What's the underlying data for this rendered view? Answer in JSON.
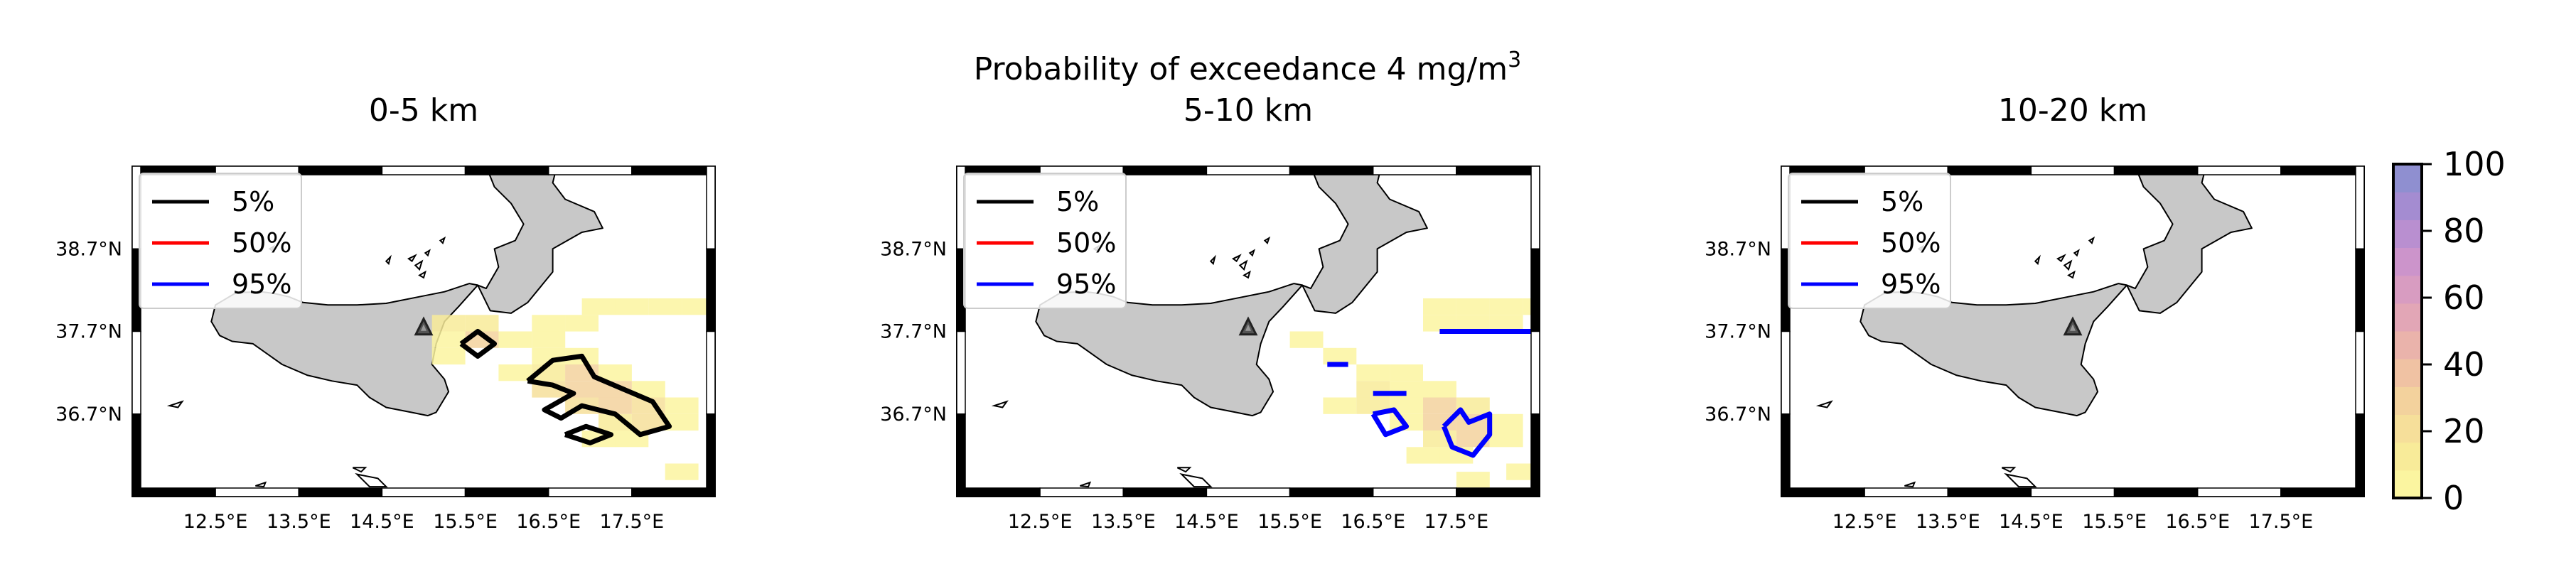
{
  "figure": {
    "suptitle": "Probability of exceedance 4 mg/m",
    "suptitle_superscript": "3"
  },
  "chart_data": [
    {
      "type": "heatmap",
      "title": "0-5 km",
      "x_ticks": [
        "12.5°E",
        "13.5°E",
        "14.5°E",
        "15.5°E",
        "16.5°E",
        "17.5°E"
      ],
      "x_tick_values": [
        12.5,
        13.5,
        14.5,
        15.5,
        16.5,
        17.5
      ],
      "y_ticks": [
        "38.7°N",
        "37.7°N",
        "36.7°N"
      ],
      "y_tick_values": [
        38.7,
        37.7,
        36.7
      ],
      "xlim": [
        11.5,
        18.5
      ],
      "ylim": [
        35.7,
        39.7
      ],
      "legend": {
        "position": "top-left",
        "entries": [
          {
            "label": "5%",
            "color": "#000000"
          },
          {
            "label": "50%",
            "color": "#ff0000"
          },
          {
            "label": "95%",
            "color": "#0000ff"
          }
        ]
      },
      "marker": {
        "lon": 15.0,
        "lat": 37.75
      },
      "cells": [
        [
          17.1,
          38.0,
          6
        ],
        [
          17.5,
          38.0,
          6
        ],
        [
          17.9,
          38.0,
          6
        ],
        [
          18.3,
          38.0,
          6
        ],
        [
          15.3,
          37.8,
          10
        ],
        [
          15.7,
          37.8,
          15
        ],
        [
          16.5,
          37.8,
          8
        ],
        [
          16.9,
          37.8,
          8
        ],
        [
          15.3,
          37.6,
          6
        ],
        [
          15.7,
          37.6,
          25
        ],
        [
          16.1,
          37.6,
          8
        ],
        [
          16.5,
          37.6,
          6
        ],
        [
          15.3,
          37.4,
          6
        ],
        [
          16.5,
          37.4,
          8
        ],
        [
          16.9,
          37.4,
          6
        ],
        [
          16.1,
          37.2,
          8
        ],
        [
          16.5,
          37.2,
          15
        ],
        [
          16.9,
          37.2,
          25
        ],
        [
          17.3,
          37.2,
          8
        ],
        [
          16.5,
          37.0,
          20
        ],
        [
          16.9,
          37.0,
          30
        ],
        [
          17.3,
          37.0,
          25
        ],
        [
          17.7,
          37.0,
          8
        ],
        [
          16.9,
          36.8,
          20
        ],
        [
          17.3,
          36.8,
          30
        ],
        [
          17.7,
          36.8,
          20
        ],
        [
          18.1,
          36.8,
          6
        ],
        [
          17.3,
          36.6,
          15
        ],
        [
          17.7,
          36.6,
          20
        ],
        [
          18.1,
          36.6,
          6
        ],
        [
          17.1,
          36.4,
          8
        ],
        [
          17.5,
          36.4,
          8
        ],
        [
          18.1,
          36.0,
          8
        ]
      ],
      "contours": [
        {
          "level": "5%",
          "color": "#000000",
          "points": [
            [
              15.45,
              37.55
            ],
            [
              15.65,
              37.7
            ],
            [
              15.85,
              37.55
            ],
            [
              15.65,
              37.4
            ],
            [
              15.45,
              37.55
            ]
          ]
        },
        {
          "level": "5%",
          "color": "#000000",
          "points": [
            [
              16.25,
              37.1
            ],
            [
              16.55,
              37.35
            ],
            [
              16.9,
              37.4
            ],
            [
              17.05,
              37.15
            ],
            [
              17.4,
              37.0
            ],
            [
              17.75,
              36.85
            ],
            [
              17.95,
              36.55
            ],
            [
              17.6,
              36.45
            ],
            [
              17.3,
              36.7
            ],
            [
              16.9,
              36.8
            ],
            [
              16.65,
              36.65
            ],
            [
              16.45,
              36.75
            ],
            [
              16.8,
              36.95
            ],
            [
              16.55,
              37.05
            ],
            [
              16.25,
              37.1
            ]
          ]
        },
        {
          "level": "5%",
          "color": "#000000",
          "points": [
            [
              16.7,
              36.45
            ],
            [
              16.95,
              36.55
            ],
            [
              17.25,
              36.45
            ],
            [
              17.0,
              36.35
            ],
            [
              16.7,
              36.45
            ]
          ]
        }
      ]
    },
    {
      "type": "heatmap",
      "title": "5-10 km",
      "x_ticks": [
        "12.5°E",
        "13.5°E",
        "14.5°E",
        "15.5°E",
        "16.5°E",
        "17.5°E"
      ],
      "x_tick_values": [
        12.5,
        13.5,
        14.5,
        15.5,
        16.5,
        17.5
      ],
      "y_ticks": [
        "38.7°N",
        "37.7°N",
        "36.7°N"
      ],
      "y_tick_values": [
        38.7,
        37.7,
        36.7
      ],
      "xlim": [
        11.5,
        18.5
      ],
      "ylim": [
        35.7,
        39.7
      ],
      "legend": {
        "position": "top-left",
        "entries": [
          {
            "label": "5%",
            "color": "#000000"
          },
          {
            "label": "50%",
            "color": "#ff0000"
          },
          {
            "label": "95%",
            "color": "#0000ff"
          }
        ]
      },
      "marker": {
        "lon": 15.0,
        "lat": 37.75
      },
      "cells": [
        [
          17.3,
          38.0,
          8
        ],
        [
          17.7,
          38.0,
          8
        ],
        [
          18.1,
          38.0,
          8
        ],
        [
          18.5,
          38.0,
          8
        ],
        [
          17.3,
          37.8,
          6
        ],
        [
          17.7,
          37.8,
          6
        ],
        [
          18.1,
          37.8,
          6
        ],
        [
          15.7,
          37.6,
          8
        ],
        [
          16.1,
          37.4,
          6
        ],
        [
          16.5,
          37.2,
          8
        ],
        [
          16.9,
          37.2,
          8
        ],
        [
          16.5,
          37.0,
          10
        ],
        [
          16.9,
          37.0,
          8
        ],
        [
          17.3,
          37.0,
          8
        ],
        [
          16.1,
          36.8,
          6
        ],
        [
          16.5,
          36.8,
          10
        ],
        [
          16.9,
          36.8,
          8
        ],
        [
          17.3,
          36.8,
          25
        ],
        [
          17.7,
          36.8,
          10
        ],
        [
          16.9,
          36.6,
          8
        ],
        [
          17.3,
          36.6,
          25
        ],
        [
          17.7,
          36.6,
          30
        ],
        [
          18.1,
          36.6,
          6
        ],
        [
          17.3,
          36.4,
          10
        ],
        [
          17.7,
          36.4,
          25
        ],
        [
          18.1,
          36.4,
          6
        ],
        [
          17.1,
          36.2,
          8
        ],
        [
          17.5,
          36.2,
          8
        ],
        [
          18.3,
          36.0,
          6
        ],
        [
          17.7,
          35.9,
          6
        ]
      ],
      "contours": [
        {
          "level": "95%",
          "color": "#0000ff",
          "points": [
            [
              17.3,
              37.7
            ],
            [
              18.5,
              37.7
            ]
          ]
        },
        {
          "level": "95%",
          "color": "#0000ff",
          "points": [
            [
              15.95,
              37.3
            ],
            [
              16.2,
              37.3
            ]
          ]
        },
        {
          "level": "95%",
          "color": "#0000ff",
          "points": [
            [
              16.5,
              36.95
            ],
            [
              16.9,
              36.95
            ]
          ]
        },
        {
          "level": "95%",
          "color": "#0000ff",
          "points": [
            [
              16.5,
              36.7
            ],
            [
              16.75,
              36.75
            ],
            [
              16.9,
              36.55
            ],
            [
              16.65,
              36.45
            ],
            [
              16.5,
              36.7
            ]
          ]
        },
        {
          "level": "95%",
          "color": "#0000ff",
          "points": [
            [
              17.35,
              36.55
            ],
            [
              17.55,
              36.75
            ],
            [
              17.65,
              36.6
            ],
            [
              17.9,
              36.7
            ],
            [
              17.9,
              36.45
            ],
            [
              17.7,
              36.2
            ],
            [
              17.45,
              36.3
            ],
            [
              17.35,
              36.55
            ]
          ]
        }
      ]
    },
    {
      "type": "heatmap",
      "title": "10-20 km",
      "x_ticks": [
        "12.5°E",
        "13.5°E",
        "14.5°E",
        "15.5°E",
        "16.5°E",
        "17.5°E"
      ],
      "x_tick_values": [
        12.5,
        13.5,
        14.5,
        15.5,
        16.5,
        17.5
      ],
      "y_ticks": [
        "38.7°N",
        "37.7°N",
        "36.7°N"
      ],
      "y_tick_values": [
        38.7,
        37.7,
        36.7
      ],
      "xlim": [
        11.5,
        18.5
      ],
      "ylim": [
        35.7,
        39.7
      ],
      "legend": {
        "position": "top-left",
        "entries": [
          {
            "label": "5%",
            "color": "#000000"
          },
          {
            "label": "50%",
            "color": "#ff0000"
          },
          {
            "label": "95%",
            "color": "#0000ff"
          }
        ]
      },
      "marker": {
        "lon": 15.0,
        "lat": 37.75
      },
      "cells": [],
      "contours": []
    }
  ],
  "colorbar": {
    "ticks": [
      "0",
      "20",
      "40",
      "60",
      "80",
      "100"
    ],
    "tick_values": [
      0,
      20,
      40,
      60,
      80,
      100
    ],
    "range": [
      0,
      100
    ],
    "colors": [
      "#fbf5a0",
      "#f8eb99",
      "#f6df9a",
      "#f3d29d",
      "#f0c2a3",
      "#eab3ab",
      "#e2a6b6",
      "#d89cc1",
      "#cc94cb",
      "#b98fd0",
      "#a48cd1",
      "#8f8fd0"
    ]
  },
  "map": {
    "land_fill": "#c8c8c8",
    "coast_color": "#000000",
    "heat_color": "#fbf5a0"
  }
}
